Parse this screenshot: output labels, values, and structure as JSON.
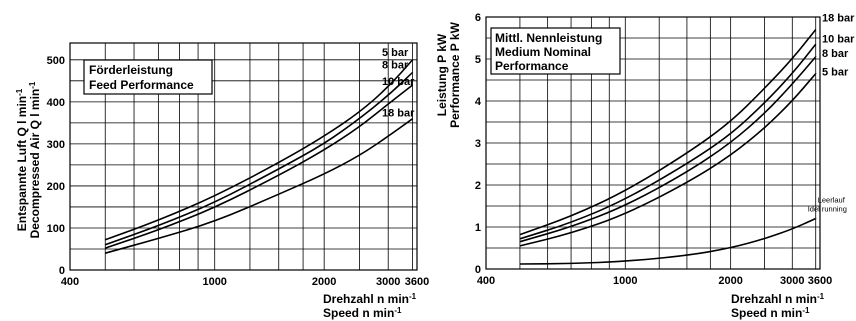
{
  "chart_data": [
    {
      "type": "line",
      "title": "Förderleistung",
      "subtitle": "Feed Performance",
      "xlabel_line1": "Drehzahl n min",
      "xlabel_line2": "Speed n min",
      "xlabel_sup": "-1",
      "ylabel_line1": "Entspannte Luft Q l min",
      "ylabel_line2": "Decompressed Air Q l min",
      "ylabel_sup": "-1",
      "xscale": "log",
      "xlim": [
        400,
        3600
      ],
      "ylim": [
        0,
        500
      ],
      "ylim_plot_top": 540,
      "xticks": [
        400,
        1000,
        2000,
        3000,
        3600
      ],
      "xtick_labels": [
        "400",
        "1000",
        "2000",
        "3000",
        "3600"
      ],
      "yticks": [
        0,
        100,
        200,
        300,
        400,
        500
      ],
      "ytick_labels": [
        "0",
        "100",
        "200",
        "300",
        "400",
        "500"
      ],
      "grid": true,
      "series": [
        {
          "name": "5 bar",
          "x": [
            500,
            700,
            1000,
            1500,
            2000,
            2500,
            3000,
            3500
          ],
          "y": [
            72,
            118,
            175,
            255,
            318,
            375,
            435,
            500
          ]
        },
        {
          "name": "8 bar",
          "x": [
            500,
            700,
            1000,
            1500,
            2000,
            2500,
            3000,
            3500
          ],
          "y": [
            60,
            105,
            160,
            240,
            300,
            360,
            415,
            470
          ]
        },
        {
          "name": "10 bar",
          "x": [
            500,
            700,
            1000,
            1500,
            2000,
            2500,
            3000,
            3500
          ],
          "y": [
            52,
            95,
            148,
            225,
            285,
            340,
            395,
            440
          ]
        },
        {
          "name": "18 bar",
          "x": [
            500,
            700,
            1000,
            1500,
            2000,
            2500,
            3000,
            3500
          ],
          "y": [
            40,
            75,
            115,
            180,
            228,
            272,
            318,
            360
          ]
        }
      ]
    },
    {
      "type": "line",
      "title": "Mittl. Nennleistung",
      "subtitle": "Medium Nominal Performance",
      "subtitle_line1": "Medium Nominal",
      "subtitle_line2": "Performance",
      "xlabel_line1": "Drehzahl n min",
      "xlabel_line2": "Speed n min",
      "xlabel_sup": "-1",
      "ylabel_line1": "Leistung P kW",
      "ylabel_line2": "Performance P kW",
      "xscale": "log",
      "xlim": [
        400,
        3600
      ],
      "ylim": [
        0,
        6
      ],
      "xticks": [
        400,
        1000,
        2000,
        3000,
        3600
      ],
      "xtick_labels": [
        "400",
        "1000",
        "2000",
        "3000",
        "3600"
      ],
      "yticks": [
        0,
        1,
        2,
        3,
        4,
        5,
        6
      ],
      "ytick_labels": [
        "0",
        "1",
        "2",
        "3",
        "4",
        "5",
        "6"
      ],
      "grid": true,
      "series": [
        {
          "name": "18 bar",
          "x": [
            500,
            700,
            1000,
            1500,
            2000,
            2500,
            3000,
            3500
          ],
          "y": [
            0.82,
            1.25,
            1.85,
            2.75,
            3.5,
            4.3,
            5.0,
            5.7
          ]
        },
        {
          "name": "10 bar",
          "x": [
            500,
            700,
            1000,
            1500,
            2000,
            2500,
            3000,
            3500
          ],
          "y": [
            0.72,
            1.1,
            1.65,
            2.5,
            3.2,
            3.95,
            4.65,
            5.35
          ]
        },
        {
          "name": "8 bar",
          "x": [
            500,
            700,
            1000,
            1500,
            2000,
            2500,
            3000,
            3500
          ],
          "y": [
            0.65,
            1.0,
            1.5,
            2.3,
            3.0,
            3.7,
            4.4,
            5.05
          ]
        },
        {
          "name": "5 bar",
          "x": [
            500,
            700,
            1000,
            1500,
            2000,
            2500,
            3000,
            3500
          ],
          "y": [
            0.55,
            0.85,
            1.3,
            2.05,
            2.7,
            3.35,
            4.0,
            4.65
          ]
        },
        {
          "name": "Leerlauf",
          "name2": "Idel running",
          "x": [
            500,
            700,
            1000,
            1500,
            2000,
            2500,
            3000,
            3500
          ],
          "y": [
            0.12,
            0.13,
            0.18,
            0.32,
            0.5,
            0.72,
            0.95,
            1.2
          ]
        }
      ]
    }
  ]
}
